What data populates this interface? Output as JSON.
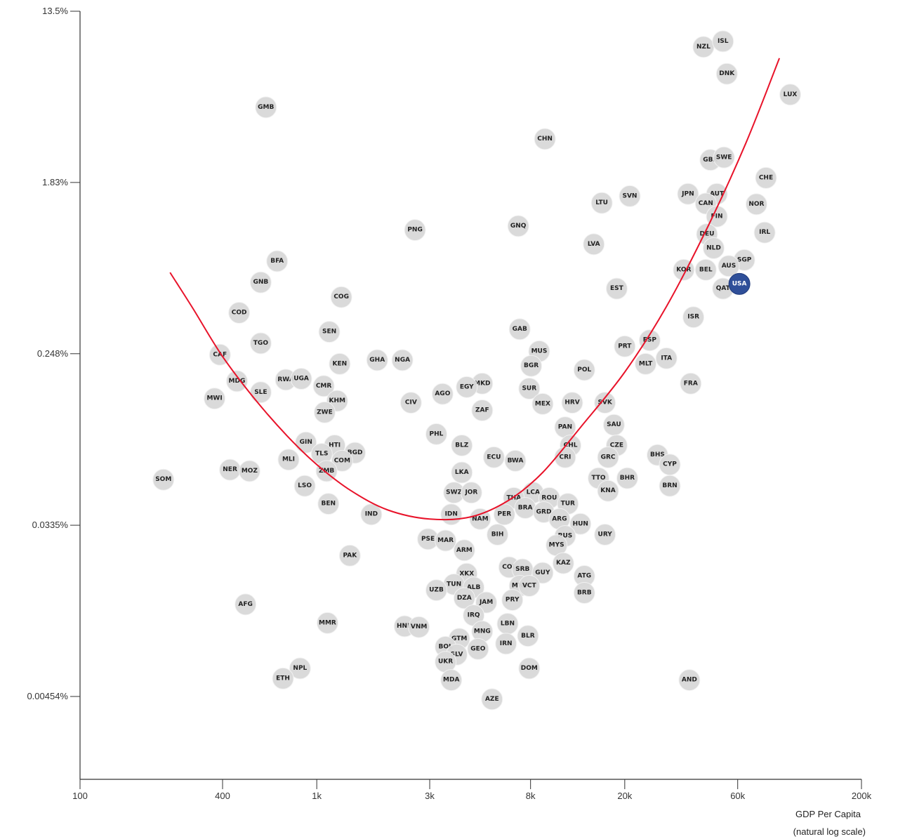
{
  "chart_data": {
    "type": "scatter",
    "title": "",
    "xlabel": "GDP Per Capita",
    "xlabel_note": "(natural log scale)",
    "ylabel": "",
    "x_scale": "log",
    "y_scale": "log",
    "xlim": [
      100,
      200000
    ],
    "ylim": [
      0.003,
      13.5
    ],
    "x_ticks": [
      {
        "value": 100,
        "label": "100"
      },
      {
        "value": 400,
        "label": "400"
      },
      {
        "value": 1000,
        "label": "1k"
      },
      {
        "value": 3000,
        "label": "3k"
      },
      {
        "value": 8000,
        "label": "8k"
      },
      {
        "value": 20000,
        "label": "20k"
      },
      {
        "value": 60000,
        "label": "60k"
      },
      {
        "value": 200000,
        "label": "200k"
      }
    ],
    "y_ticks": [
      {
        "value": 13.5,
        "label": "13.5%"
      },
      {
        "value": 1.83,
        "label": "1.83%"
      },
      {
        "value": 0.248,
        "label": "0.248%"
      },
      {
        "value": 0.0335,
        "label": "0.0335%"
      },
      {
        "value": 0.00454,
        "label": "0.00454%"
      }
    ],
    "highlight_color": "#2f4f99",
    "point_color": "#d9d9d9",
    "fit_color": "#e8132a",
    "fit_curve": [
      {
        "x": 240,
        "y": 0.64
      },
      {
        "x": 300,
        "y": 0.42
      },
      {
        "x": 400,
        "y": 0.24
      },
      {
        "x": 550,
        "y": 0.145
      },
      {
        "x": 750,
        "y": 0.095
      },
      {
        "x": 1000,
        "y": 0.068
      },
      {
        "x": 1400,
        "y": 0.05
      },
      {
        "x": 2000,
        "y": 0.04
      },
      {
        "x": 3000,
        "y": 0.036
      },
      {
        "x": 4500,
        "y": 0.037
      },
      {
        "x": 6500,
        "y": 0.045
      },
      {
        "x": 9000,
        "y": 0.062
      },
      {
        "x": 13000,
        "y": 0.105
      },
      {
        "x": 20000,
        "y": 0.2
      },
      {
        "x": 30000,
        "y": 0.43
      },
      {
        "x": 45000,
        "y": 1.1
      },
      {
        "x": 65000,
        "y": 2.9
      },
      {
        "x": 90000,
        "y": 7.8
      }
    ],
    "points": [
      {
        "label": "NZL",
        "x": 43000,
        "y": 8.9
      },
      {
        "label": "ISL",
        "x": 52000,
        "y": 9.5
      },
      {
        "label": "DNK",
        "x": 54000,
        "y": 6.5
      },
      {
        "label": "LUX",
        "x": 100000,
        "y": 5.1
      },
      {
        "label": "GMB",
        "x": 610,
        "y": 4.4
      },
      {
        "label": "CHN",
        "x": 9200,
        "y": 3.04
      },
      {
        "label": "GBR",
        "x": 46000,
        "y": 2.38
      },
      {
        "label": "SWE",
        "x": 52500,
        "y": 2.45
      },
      {
        "label": "CHE",
        "x": 79000,
        "y": 1.93
      },
      {
        "label": "SVN",
        "x": 21000,
        "y": 1.56
      },
      {
        "label": "JPN",
        "x": 37000,
        "y": 1.6
      },
      {
        "label": "AUT",
        "x": 49000,
        "y": 1.6
      },
      {
        "label": "LTU",
        "x": 16000,
        "y": 1.44
      },
      {
        "label": "CAN",
        "x": 44000,
        "y": 1.43
      },
      {
        "label": "NOR",
        "x": 72000,
        "y": 1.42
      },
      {
        "label": "FIN",
        "x": 49000,
        "y": 1.23
      },
      {
        "label": "PNG",
        "x": 2600,
        "y": 1.05
      },
      {
        "label": "GNQ",
        "x": 7100,
        "y": 1.1
      },
      {
        "label": "DEU",
        "x": 44500,
        "y": 1.0
      },
      {
        "label": "IRL",
        "x": 78000,
        "y": 1.02
      },
      {
        "label": "LVA",
        "x": 14800,
        "y": 0.89
      },
      {
        "label": "NLD",
        "x": 47500,
        "y": 0.85
      },
      {
        "label": "BFA",
        "x": 680,
        "y": 0.73
      },
      {
        "label": "SGP",
        "x": 64000,
        "y": 0.74
      },
      {
        "label": "AUS",
        "x": 55000,
        "y": 0.69
      },
      {
        "label": "KOR",
        "x": 35500,
        "y": 0.66
      },
      {
        "label": "BEL",
        "x": 44000,
        "y": 0.66
      },
      {
        "label": "GNB",
        "x": 580,
        "y": 0.57
      },
      {
        "label": "USA",
        "x": 61000,
        "y": 0.56,
        "highlight": true
      },
      {
        "label": "QAT",
        "x": 52000,
        "y": 0.53
      },
      {
        "label": "EST",
        "x": 18500,
        "y": 0.53
      },
      {
        "label": "COG",
        "x": 1270,
        "y": 0.48
      },
      {
        "label": "COD",
        "x": 470,
        "y": 0.4
      },
      {
        "label": "ISR",
        "x": 39000,
        "y": 0.38
      },
      {
        "label": "GAB",
        "x": 7200,
        "y": 0.33
      },
      {
        "label": "SEN",
        "x": 1130,
        "y": 0.32
      },
      {
        "label": "TGO",
        "x": 580,
        "y": 0.28
      },
      {
        "label": "ESP",
        "x": 25500,
        "y": 0.29
      },
      {
        "label": "PRT",
        "x": 20000,
        "y": 0.27
      },
      {
        "label": "MUS",
        "x": 8700,
        "y": 0.255
      },
      {
        "label": "CAF",
        "x": 390,
        "y": 0.245
      },
      {
        "label": "NGA",
        "x": 2300,
        "y": 0.23
      },
      {
        "label": "GHA",
        "x": 1800,
        "y": 0.23
      },
      {
        "label": "ITA",
        "x": 30000,
        "y": 0.235
      },
      {
        "label": "MLT",
        "x": 24500,
        "y": 0.22
      },
      {
        "label": "KEN",
        "x": 1250,
        "y": 0.22
      },
      {
        "label": "BGR",
        "x": 8050,
        "y": 0.215
      },
      {
        "label": "POL",
        "x": 13500,
        "y": 0.205
      },
      {
        "label": "RWA",
        "x": 740,
        "y": 0.183
      },
      {
        "label": "UGA",
        "x": 860,
        "y": 0.185
      },
      {
        "label": "MDG",
        "x": 460,
        "y": 0.18
      },
      {
        "label": "CMR",
        "x": 1070,
        "y": 0.17
      },
      {
        "label": "FRA",
        "x": 38000,
        "y": 0.175
      },
      {
        "label": "MKD",
        "x": 5000,
        "y": 0.175
      },
      {
        "label": "EGY",
        "x": 4300,
        "y": 0.168
      },
      {
        "label": "SLE",
        "x": 580,
        "y": 0.158
      },
      {
        "label": "SUR",
        "x": 7900,
        "y": 0.165
      },
      {
        "label": "AGO",
        "x": 3400,
        "y": 0.155
      },
      {
        "label": "MWI",
        "x": 370,
        "y": 0.147
      },
      {
        "label": "KHM",
        "x": 1220,
        "y": 0.143
      },
      {
        "label": "CIV",
        "x": 2500,
        "y": 0.14
      },
      {
        "label": "SVK",
        "x": 16500,
        "y": 0.14
      },
      {
        "label": "HRV",
        "x": 12000,
        "y": 0.14
      },
      {
        "label": "MEX",
        "x": 9000,
        "y": 0.138
      },
      {
        "label": "ZWE",
        "x": 1080,
        "y": 0.125
      },
      {
        "label": "ZAF",
        "x": 5000,
        "y": 0.128
      },
      {
        "label": "SAU",
        "x": 18000,
        "y": 0.108
      },
      {
        "label": "PAN",
        "x": 11200,
        "y": 0.105
      },
      {
        "label": "PHL",
        "x": 3200,
        "y": 0.097
      },
      {
        "label": "GIN",
        "x": 900,
        "y": 0.088
      },
      {
        "label": "BLZ",
        "x": 4100,
        "y": 0.085
      },
      {
        "label": "HTI",
        "x": 1190,
        "y": 0.085
      },
      {
        "label": "CHL",
        "x": 11800,
        "y": 0.085
      },
      {
        "label": "CZE",
        "x": 18500,
        "y": 0.085
      },
      {
        "label": "BGD",
        "x": 1450,
        "y": 0.078
      },
      {
        "label": "TLS",
        "x": 1050,
        "y": 0.077
      },
      {
        "label": "BHS",
        "x": 27500,
        "y": 0.076
      },
      {
        "label": "MLI",
        "x": 760,
        "y": 0.072
      },
      {
        "label": "ECU",
        "x": 5600,
        "y": 0.074
      },
      {
        "label": "CRI",
        "x": 11200,
        "y": 0.074
      },
      {
        "label": "GRC",
        "x": 17000,
        "y": 0.074
      },
      {
        "label": "BWA",
        "x": 6900,
        "y": 0.071
      },
      {
        "label": "COM",
        "x": 1280,
        "y": 0.071
      },
      {
        "label": "CYP",
        "x": 31000,
        "y": 0.068
      },
      {
        "label": "NER",
        "x": 430,
        "y": 0.064
      },
      {
        "label": "MOZ",
        "x": 520,
        "y": 0.063
      },
      {
        "label": "ZMB",
        "x": 1100,
        "y": 0.063
      },
      {
        "label": "LKA",
        "x": 4100,
        "y": 0.062
      },
      {
        "label": "TTO",
        "x": 15500,
        "y": 0.058
      },
      {
        "label": "BHR",
        "x": 20500,
        "y": 0.058
      },
      {
        "label": "SOM",
        "x": 225,
        "y": 0.057
      },
      {
        "label": "BRN",
        "x": 31000,
        "y": 0.053
      },
      {
        "label": "LSO",
        "x": 890,
        "y": 0.053
      },
      {
        "label": "KNA",
        "x": 17000,
        "y": 0.05
      },
      {
        "label": "SWZ",
        "x": 3800,
        "y": 0.049
      },
      {
        "label": "JOR",
        "x": 4500,
        "y": 0.049
      },
      {
        "label": "LCA",
        "x": 8200,
        "y": 0.049
      },
      {
        "label": "THA",
        "x": 6800,
        "y": 0.046
      },
      {
        "label": "ROU",
        "x": 9600,
        "y": 0.046
      },
      {
        "label": "BEN",
        "x": 1120,
        "y": 0.043
      },
      {
        "label": "TUR",
        "x": 11500,
        "y": 0.043
      },
      {
        "label": "BRA",
        "x": 7600,
        "y": 0.041
      },
      {
        "label": "IND",
        "x": 1700,
        "y": 0.038
      },
      {
        "label": "IDN",
        "x": 3700,
        "y": 0.038
      },
      {
        "label": "PER",
        "x": 6200,
        "y": 0.038
      },
      {
        "label": "GRD",
        "x": 9100,
        "y": 0.039
      },
      {
        "label": "ARG",
        "x": 10600,
        "y": 0.036
      },
      {
        "label": "NAM",
        "x": 4900,
        "y": 0.036
      },
      {
        "label": "HUN",
        "x": 13000,
        "y": 0.034
      },
      {
        "label": "BIH",
        "x": 5800,
        "y": 0.03
      },
      {
        "label": "URY",
        "x": 16500,
        "y": 0.03
      },
      {
        "label": "RUS",
        "x": 11200,
        "y": 0.0295
      },
      {
        "label": "PSE",
        "x": 2950,
        "y": 0.0285
      },
      {
        "label": "MAR",
        "x": 3500,
        "y": 0.028
      },
      {
        "label": "MYS",
        "x": 10300,
        "y": 0.0265
      },
      {
        "label": "ARM",
        "x": 4200,
        "y": 0.025
      },
      {
        "label": "PAK",
        "x": 1380,
        "y": 0.0235
      },
      {
        "label": "KAZ",
        "x": 11000,
        "y": 0.0215
      },
      {
        "label": "COL",
        "x": 6500,
        "y": 0.0205
      },
      {
        "label": "SRB",
        "x": 7400,
        "y": 0.02
      },
      {
        "label": "XKX",
        "x": 4300,
        "y": 0.019
      },
      {
        "label": "GUY",
        "x": 9000,
        "y": 0.0192
      },
      {
        "label": "ATG",
        "x": 13500,
        "y": 0.0185
      },
      {
        "label": "TUN",
        "x": 3800,
        "y": 0.0168
      },
      {
        "label": "ALB",
        "x": 4600,
        "y": 0.0162
      },
      {
        "label": "MNE",
        "x": 7200,
        "y": 0.0165
      },
      {
        "label": "VCT",
        "x": 7900,
        "y": 0.0165
      },
      {
        "label": "UZB",
        "x": 3200,
        "y": 0.0157
      },
      {
        "label": "BRB",
        "x": 13500,
        "y": 0.0152
      },
      {
        "label": "DZA",
        "x": 4200,
        "y": 0.0143
      },
      {
        "label": "PRY",
        "x": 6700,
        "y": 0.014
      },
      {
        "label": "JAM",
        "x": 5200,
        "y": 0.0136
      },
      {
        "label": "AFG",
        "x": 500,
        "y": 0.0133
      },
      {
        "label": "IRQ",
        "x": 4600,
        "y": 0.0117
      },
      {
        "label": "MMR",
        "x": 1110,
        "y": 0.0107
      },
      {
        "label": "HND",
        "x": 2350,
        "y": 0.0103
      },
      {
        "label": "VNM",
        "x": 2700,
        "y": 0.0102
      },
      {
        "label": "LBN",
        "x": 6400,
        "y": 0.0106
      },
      {
        "label": "MNG",
        "x": 5000,
        "y": 0.0097
      },
      {
        "label": "BLR",
        "x": 7800,
        "y": 0.0092
      },
      {
        "label": "GTM",
        "x": 4000,
        "y": 0.0089
      },
      {
        "label": "IRN",
        "x": 6300,
        "y": 0.0084
      },
      {
        "label": "BOL",
        "x": 3500,
        "y": 0.0081
      },
      {
        "label": "GEO",
        "x": 4800,
        "y": 0.0079
      },
      {
        "label": "SLV",
        "x": 3900,
        "y": 0.0074
      },
      {
        "label": "UKR",
        "x": 3500,
        "y": 0.0068
      },
      {
        "label": "NPL",
        "x": 850,
        "y": 0.0063
      },
      {
        "label": "DOM",
        "x": 7900,
        "y": 0.0063
      },
      {
        "label": "ETH",
        "x": 720,
        "y": 0.0056
      },
      {
        "label": "MDA",
        "x": 3700,
        "y": 0.0055
      },
      {
        "label": "AND",
        "x": 37500,
        "y": 0.0055
      },
      {
        "label": "AZE",
        "x": 5500,
        "y": 0.0044
      }
    ]
  }
}
